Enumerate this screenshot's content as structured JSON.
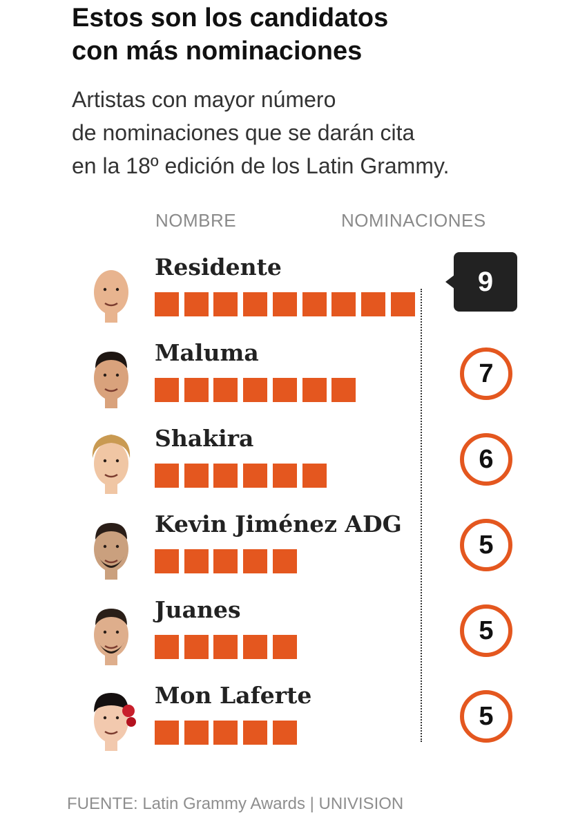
{
  "header": {
    "title_line1": "Estos son los candidatos",
    "title_line2": "con más nominaciones",
    "subtitle_line1": "Artistas con mayor número",
    "subtitle_line2": "de nominaciones que se darán cita",
    "subtitle_line3": "en la 18º edición de los Latin Grammy."
  },
  "columns": {
    "name": "NOMBRE",
    "nominations": "NOMINACIONES"
  },
  "footer": {
    "source": "FUENTE: Latin Grammy Awards | UNIVISION"
  },
  "colors": {
    "accent": "#e4571f",
    "highlight_tag": "#222222",
    "text": "#111111",
    "muted": "#8a8a8a"
  },
  "chart_data": {
    "type": "bar",
    "title": "Estos son los candidatos con más nominaciones",
    "subtitle": "Artistas con mayor número de nominaciones que se darán cita en la 18º edición de los Latin Grammy.",
    "categories": [
      "Residente",
      "Maluma",
      "Shakira",
      "Kevin Jiménez ADG",
      "Juanes",
      "Mon Laferte"
    ],
    "values": [
      9,
      7,
      6,
      5,
      5,
      5
    ],
    "xlabel": "NOMINACIONES",
    "ylabel": "NOMBRE",
    "highlight": "Residente",
    "grid": false,
    "legend": "none"
  }
}
